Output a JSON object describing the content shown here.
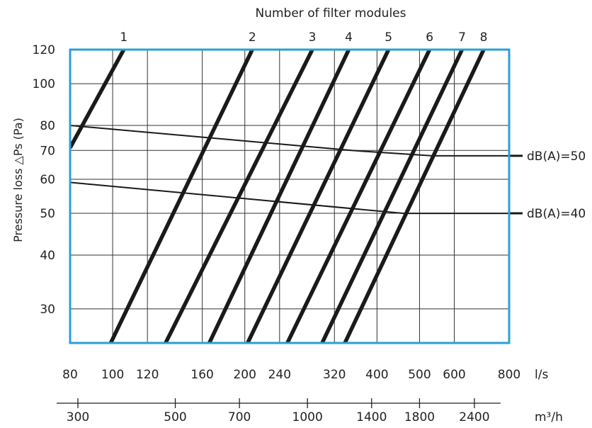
{
  "chart_data": {
    "type": "line",
    "top_axis_title": "Number of filter modules",
    "ylabel": "Pressure loss △Ps (Pa)",
    "x_scale": "log",
    "y_scale": "log",
    "xlim": [
      80,
      800
    ],
    "ylim": [
      25,
      120
    ],
    "grid": true,
    "x_unit": "l/s",
    "x2_unit": "m³/h",
    "x_ticks": [
      80,
      100,
      120,
      160,
      200,
      240,
      320,
      400,
      500,
      600,
      800
    ],
    "x2_ticks": [
      300,
      500,
      700,
      1000,
      1400,
      1800,
      2400
    ],
    "y_ticks": [
      30,
      40,
      50,
      60,
      70,
      80,
      100,
      120
    ],
    "module_lines": [
      {
        "name": "1",
        "points": [
          [
            80,
            71
          ],
          [
            106,
            120
          ]
        ]
      },
      {
        "name": "2",
        "points": [
          [
            99,
            25
          ],
          [
            208,
            120
          ]
        ]
      },
      {
        "name": "3",
        "points": [
          [
            132,
            25
          ],
          [
            285,
            120
          ]
        ]
      },
      {
        "name": "4",
        "points": [
          [
            166,
            25
          ],
          [
            345,
            120
          ]
        ]
      },
      {
        "name": "5",
        "points": [
          [
            203,
            25
          ],
          [
            425,
            120
          ]
        ]
      },
      {
        "name": "6",
        "points": [
          [
            250,
            25
          ],
          [
            527,
            120
          ]
        ]
      },
      {
        "name": "7",
        "points": [
          [
            300,
            25
          ],
          [
            625,
            120
          ]
        ]
      },
      {
        "name": "8",
        "points": [
          [
            338,
            25
          ],
          [
            700,
            120
          ]
        ]
      }
    ],
    "sound_lines": [
      {
        "name": "dB(A)=50",
        "points": [
          [
            80,
            80
          ],
          [
            350,
            70
          ],
          [
            535,
            68
          ],
          [
            800,
            68
          ]
        ]
      },
      {
        "name": "dB(A)=40",
        "points": [
          [
            80,
            59
          ],
          [
            460,
            50
          ],
          [
            800,
            50
          ]
        ]
      }
    ],
    "colors": {
      "frame": "#2a9fd6",
      "line": "#1a1a1a",
      "grid": "#333333"
    }
  }
}
